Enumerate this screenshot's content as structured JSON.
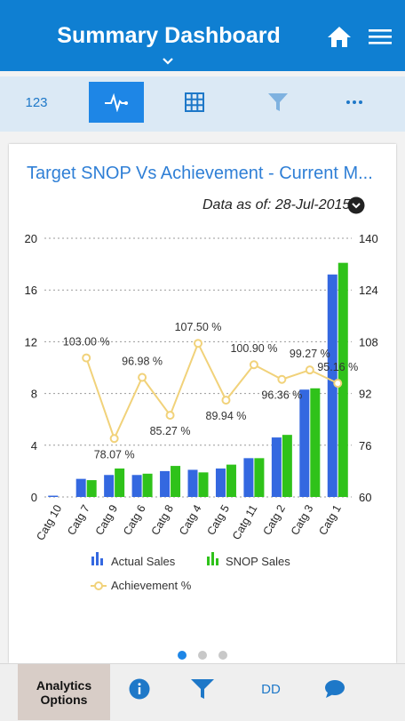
{
  "header": {
    "title": "Summary Dashboard"
  },
  "toolbar": {
    "item_123": "123"
  },
  "card": {
    "title": "Target SNOP Vs Achievement - Current M...",
    "as_of_label": "Data as of: 28-Jul-2015"
  },
  "bottom_bar": {
    "analytics_line1": "Analytics",
    "analytics_line2": "Options",
    "dd_label": "DD"
  },
  "pager": {
    "count": 3,
    "active_index": 0
  },
  "colors": {
    "header_bg": "#0f7fd2",
    "actual": "#3468e0",
    "snop": "#2fc21a",
    "achievement": "#f1d27a",
    "accent": "#1e86e6"
  },
  "icons": [
    "chevron-down-icon",
    "home-icon",
    "hamburger-menu-icon",
    "pulse-icon",
    "grid-icon",
    "filter-icon",
    "more-icon",
    "chevron-down-circle-icon",
    "info-icon",
    "chat-icon"
  ],
  "chart_data": {
    "type": "bar",
    "categories": [
      "Catg 10",
      "Catg 7",
      "Catg 9",
      "Catg 6",
      "Catg 8",
      "Catg 4",
      "Catg 5",
      "Catg 11",
      "Catg 2",
      "Catg 3",
      "Catg 1"
    ],
    "series": [
      {
        "name": "Actual Sales",
        "values": [
          0.1,
          1.4,
          1.7,
          1.7,
          2.0,
          2.1,
          2.2,
          3.0,
          4.6,
          8.3,
          17.2
        ]
      },
      {
        "name": "SNOP Sales",
        "values": [
          0.0,
          1.3,
          2.2,
          1.8,
          2.4,
          1.9,
          2.5,
          3.0,
          4.8,
          8.4,
          18.1
        ]
      }
    ],
    "line_series": {
      "name": "Achievement %",
      "values": [
        null,
        103.0,
        78.07,
        96.98,
        85.27,
        107.5,
        89.94,
        100.9,
        96.36,
        99.27,
        95.16
      ],
      "labels": [
        "",
        "103.00 %",
        "78.07 %",
        "96.98 %",
        "85.27 %",
        "107.50 %",
        "89.94 %",
        "100.90 %",
        "96.36 %",
        "99.27 %",
        "95.16 %"
      ]
    },
    "ylim": [
      0,
      20
    ],
    "y_ticks": [
      "0",
      "4",
      "8",
      "12",
      "16",
      "20"
    ],
    "y2lim": [
      60,
      140
    ],
    "y2_ticks": [
      "60",
      "76",
      "92",
      "108",
      "124",
      "140"
    ],
    "grid": true,
    "legend_position": "bottom"
  }
}
